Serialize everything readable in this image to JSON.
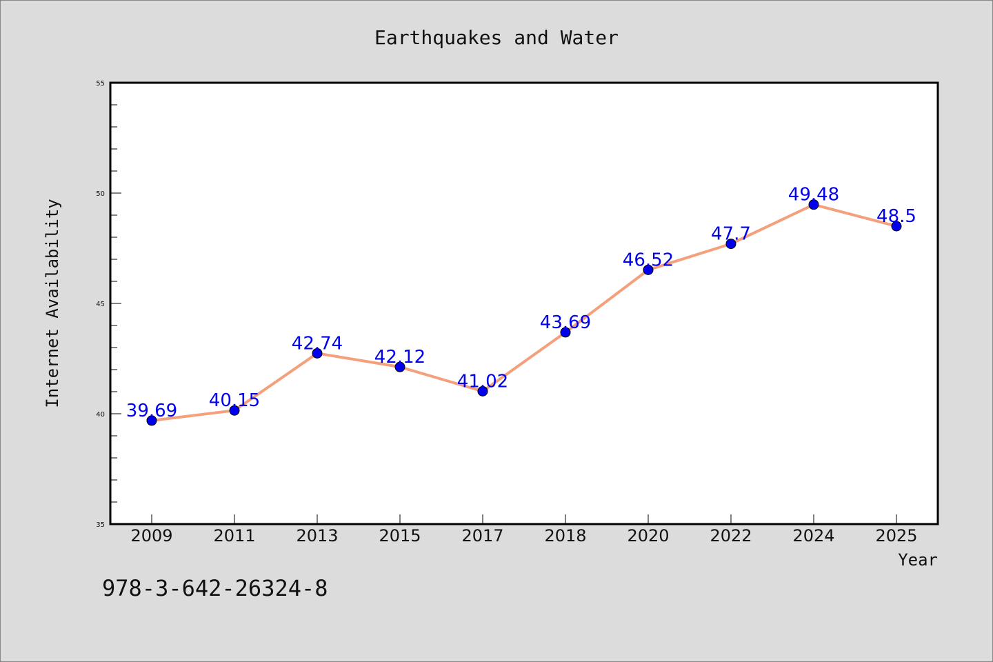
{
  "chart_data": {
    "type": "line",
    "title": "Earthquakes and Water",
    "xlabel": "Year",
    "ylabel": "Internet Availability",
    "categories": [
      "2009",
      "2011",
      "2013",
      "2015",
      "2017",
      "2018",
      "2020",
      "2022",
      "2024",
      "2025"
    ],
    "series": [
      {
        "values": [
          39.69,
          40.15,
          42.74,
          42.12,
          41.02,
          43.69,
          46.52,
          47.7,
          49.48,
          48.5
        ],
        "labels": [
          "39.69",
          "40.15",
          "42.74",
          "42.12",
          "41.02",
          "43.69",
          "46.52",
          "47.7",
          "49.48",
          "48.5"
        ],
        "line_color": "#f4a07c",
        "marker_color": "#0000ee",
        "label_color": "#0000ee"
      }
    ],
    "ylim": [
      35,
      55
    ],
    "yticks": [
      35,
      40,
      45,
      50,
      55
    ],
    "grid": false,
    "legend": "none"
  },
  "footer": {
    "text": "978-3-642-26324-8"
  }
}
